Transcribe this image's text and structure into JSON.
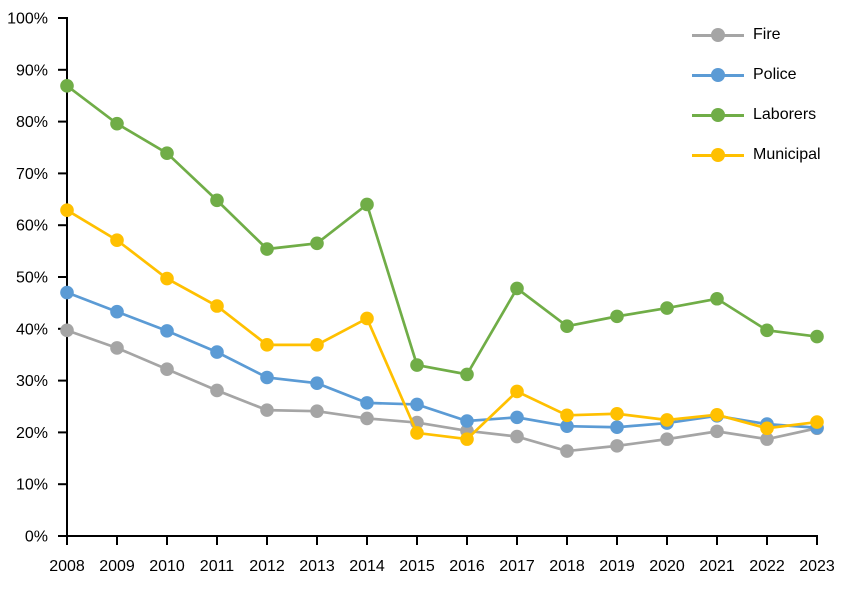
{
  "chart_data": {
    "type": "line",
    "title": "",
    "xlabel": "",
    "ylabel": "",
    "grid": false,
    "legend_position": "top-right-inside",
    "ylim": [
      0,
      100
    ],
    "ytick_step": 10,
    "yticks": [
      "0%",
      "10%",
      "20%",
      "30%",
      "40%",
      "50%",
      "60%",
      "70%",
      "80%",
      "90%",
      "100%"
    ],
    "categories": [
      "2008",
      "2009",
      "2010",
      "2011",
      "2012",
      "2013",
      "2014",
      "2015",
      "2016",
      "2017",
      "2018",
      "2019",
      "2020",
      "2021",
      "2022",
      "2023"
    ],
    "series": [
      {
        "name": "Fire",
        "color": "#A5A5A5",
        "values": [
          39.7,
          36.3,
          32.2,
          28.1,
          24.3,
          24.1,
          22.7,
          21.9,
          20.3,
          19.2,
          16.4,
          17.4,
          18.7,
          20.2,
          18.7,
          20.8
        ]
      },
      {
        "name": "Police",
        "color": "#5B9BD5",
        "values": [
          47.0,
          43.3,
          39.6,
          35.5,
          30.6,
          29.5,
          25.7,
          25.4,
          22.2,
          22.9,
          21.2,
          21.0,
          21.8,
          23.2,
          21.6,
          20.9
        ]
      },
      {
        "name": "Laborers",
        "color": "#70AD47",
        "values": [
          86.9,
          79.6,
          73.9,
          64.8,
          55.4,
          56.5,
          64.0,
          33.0,
          31.2,
          47.8,
          40.5,
          42.4,
          44.0,
          45.8,
          39.7,
          38.5
        ]
      },
      {
        "name": "Municipal",
        "color": "#FFC000",
        "values": [
          62.9,
          57.1,
          49.7,
          44.4,
          36.9,
          36.9,
          42.0,
          19.9,
          18.7,
          27.9,
          23.3,
          23.6,
          22.4,
          23.4,
          20.8,
          22.0
        ]
      }
    ],
    "axis_color": "#000000"
  }
}
